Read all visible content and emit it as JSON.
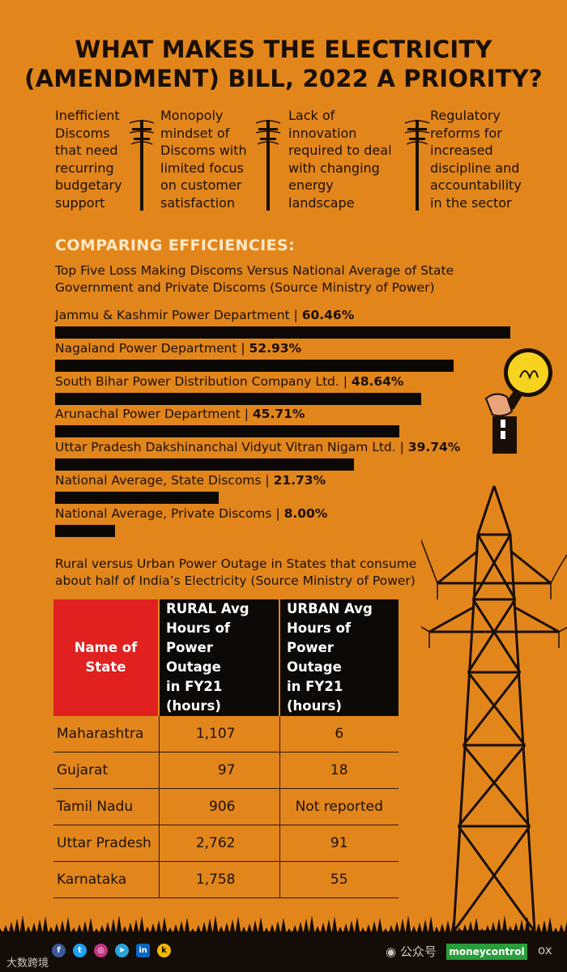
{
  "title": {
    "line1": "WHAT MAKES THE ELECTRICITY",
    "line2": "(AMENDMENT) BILL, 2022 A PRIORITY?"
  },
  "reasons": [
    {
      "lines": [
        "Inefficient",
        "Discoms",
        "that need",
        "recurring",
        "budgetary",
        "support"
      ]
    },
    {
      "lines": [
        "Monopoly",
        "mindset of",
        "Discoms with",
        "limited focus",
        "on customer",
        "satisfaction"
      ]
    },
    {
      "lines": [
        "Lack of",
        "innovation",
        "required to deal",
        "with changing",
        "energy",
        "landscape"
      ]
    },
    {
      "lines": [
        "Regulatory",
        "reforms for",
        "increased",
        "discipline and",
        "accountability",
        "in the sector"
      ]
    }
  ],
  "section_heading": "COMPARING EFFICIENCIES:",
  "chart_data": [
    {
      "type": "bar",
      "orientation": "horizontal",
      "title": "Top Five Loss Making Discoms Versus National Average of State Government and Private Discoms (Source Ministry of Power)",
      "title_lines": [
        "Top Five Loss Making Discoms Versus National Average of State",
        "Government and Private Discoms (Source Ministry of Power)"
      ],
      "categories": [
        "Jammu & Kashmir Power Department",
        "Nagaland Power Department",
        "South Bihar Power Distribution Company Ltd.",
        "Arunachal Power Department",
        "Uttar Pradesh Dakshinanchal Vidyut Vitran Nigam Ltd.",
        "National Average, State Discoms",
        "National Average, Private Discoms"
      ],
      "values": [
        60.46,
        52.93,
        48.64,
        45.71,
        39.74,
        21.73,
        8.0
      ],
      "value_labels": [
        "60.46%",
        "52.93%",
        "48.64%",
        "45.71%",
        "39.74%",
        "21.73%",
        "8.00%"
      ],
      "xlim": [
        0,
        60.46
      ],
      "bar_color": "#0b0806"
    },
    {
      "type": "table",
      "title": "Rural versus Urban Power Outage in States that consume about half of India's Electricity (Source Ministry of Power)",
      "title_lines": [
        "Rural versus Urban Power Outage in States that consume",
        "about half of India’s Electricity (Source Ministry of Power)"
      ],
      "columns": [
        "Name of State",
        "RURAL Avg Hours of Power Outage in FY21 (hours)",
        "URBAN Avg Hours of Power Outage in FY21 (hours)"
      ],
      "column_lines": [
        [
          "Name of State"
        ],
        [
          "RURAL Avg",
          "Hours of",
          "Power Outage",
          "in FY21",
          "(hours)"
        ],
        [
          "URBAN Avg",
          "Hours of",
          "Power Outage",
          "in FY21",
          "(hours)"
        ]
      ],
      "rows": [
        [
          "Maharashtra",
          "1,107",
          "6"
        ],
        [
          "Gujarat",
          "97",
          "18"
        ],
        [
          "Tamil Nadu",
          "906",
          "Not reported"
        ],
        [
          "Uttar Pradesh",
          "2,762",
          "91"
        ],
        [
          "Karnataka",
          "1,758",
          "55"
        ]
      ]
    }
  ],
  "footer": {
    "social_icons": [
      "facebook-icon",
      "twitter-icon",
      "instagram-icon",
      "telegram-icon",
      "linkedin-icon",
      "koo-icon"
    ],
    "brand": "moneycontrol",
    "watermark_left": "大数跨境",
    "watermark_right": "公众号",
    "watermark_tail": "ox"
  },
  "colors": {
    "background": "#e2861c",
    "header_red": "#e0211f",
    "dark": "#0d0907",
    "heading_light": "#ffe9c8",
    "bulb": "#f7d31f"
  }
}
